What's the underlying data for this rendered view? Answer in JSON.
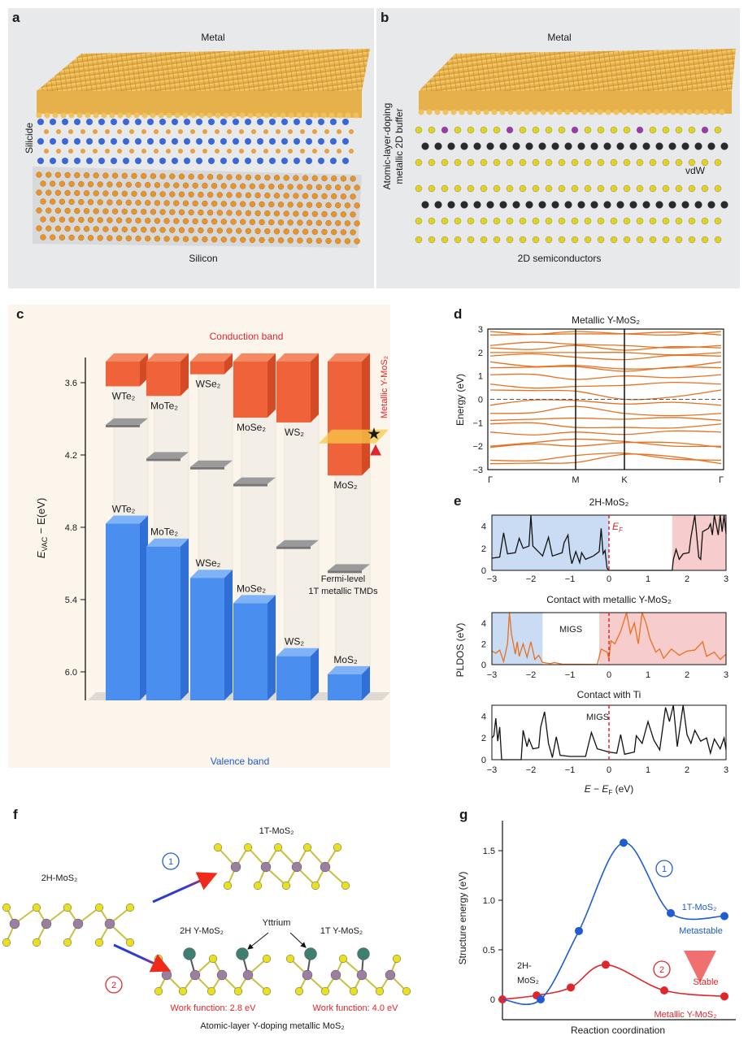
{
  "panel_labels": {
    "a": "a",
    "b": "b",
    "c": "c",
    "d": "d",
    "e": "e",
    "f": "f",
    "g": "g"
  },
  "panel_a": {
    "metal": "Metal",
    "silicide": "Silicide",
    "silicon": "Silicon"
  },
  "panel_b": {
    "metal": "Metal",
    "buffer_line1": "Atomic-layer-doping",
    "buffer_line2": "metallic 2D buffer",
    "vdw": "vdW",
    "semiconductors": "2D semiconductors"
  },
  "panel_f": {
    "start": "2H-MoS₂",
    "path1_marker": "1",
    "path1_product": "1T-MoS₂",
    "path2_marker": "2",
    "product_2h": "2H Y-MoS₂",
    "product_1t": "1T Y-MoS₂",
    "dopant": "Yttrium",
    "wf_2h": "Work function: 2.8 eV",
    "wf_1t": "Work function: 4.0 eV",
    "caption": "Atomic-layer Y-doping metallic MoS₂",
    "colors": {
      "mo": "#9a7fa0",
      "s": "#e8e020",
      "y": "#3f7f72",
      "arrow_start": "#1f3fd1",
      "arrow_end": "#f02a1a"
    }
  },
  "chart_data": [
    {
      "panel": "c",
      "type": "bar",
      "subtype": "floating-3d-band-alignment",
      "ylabel_main": "E",
      "ylabel_sub": "VAC",
      "ylabel_rest": " − E(eV)",
      "ylabel_italic_e": "E",
      "yaxis_inverted": true,
      "ylim": [
        3.4,
        6.24
      ],
      "yticks": [
        "3.6",
        "4.2",
        "4.8",
        "5.4",
        "6.0"
      ],
      "yticks_values": [
        3.6,
        4.2,
        4.8,
        5.4,
        6.0
      ],
      "top_label": "Conduction band",
      "bottom_label": "Valence band",
      "categories": [
        "WTe₂",
        "MoTe₂",
        "WSe₂",
        "MoSe₂",
        "WS₂",
        "MoS₂"
      ],
      "conduction_band_minimum": [
        3.63,
        3.71,
        3.53,
        3.89,
        3.93,
        4.37
      ],
      "valence_band_maximum": [
        4.77,
        4.96,
        5.22,
        5.43,
        5.87,
        6.02
      ],
      "fermi_level_1T": [
        3.95,
        4.23,
        4.3,
        4.44,
        4.96,
        5.16
      ],
      "metallic_y_mos2_level": 4.07,
      "annotation_metallic": "Metallic Y-MoS₂",
      "annotation_fermi_line1": "Fermi-level",
      "annotation_fermi_line2": "1T metallic TMDs",
      "colors": {
        "conduction": "#f0623a",
        "valence": "#4a8ef0",
        "fermi": "#8c8c8c",
        "plane": "#f7c948",
        "star": "#e0262b"
      }
    },
    {
      "panel": "d",
      "type": "line",
      "title": "Metallic Y-MoS₂",
      "ylabel": "Energy (eV)",
      "ylim": [
        -3,
        3
      ],
      "yticks": [
        "3",
        "2",
        "1",
        "0",
        "−1",
        "−2",
        "−3"
      ],
      "yticks_values": [
        3,
        2,
        1,
        0,
        -1,
        -2,
        -3
      ],
      "kpath": [
        "Γ",
        "M",
        "K",
        "Γ"
      ],
      "fermi_level": 0,
      "band_color": "#e8701e",
      "bands_at_kpoints": [
        [
          2.9,
          2.9,
          2.8,
          2.9
        ],
        [
          2.75,
          2.8,
          2.8,
          2.75
        ],
        [
          2.3,
          2.35,
          2.3,
          2.3
        ],
        [
          2.2,
          2.3,
          2.1,
          2.2
        ],
        [
          2.0,
          2.0,
          2.0,
          2.0
        ],
        [
          1.85,
          1.8,
          1.7,
          1.85
        ],
        [
          1.6,
          1.45,
          1.3,
          1.6
        ],
        [
          1.35,
          1.4,
          1.2,
          1.35
        ],
        [
          1.05,
          0.85,
          1.0,
          1.05
        ],
        [
          0.65,
          0.55,
          0.6,
          0.65
        ],
        [
          0.4,
          0.35,
          0.0,
          0.4
        ],
        [
          -0.25,
          -0.05,
          -0.2,
          -0.25
        ],
        [
          -0.6,
          -0.3,
          -0.6,
          -0.6
        ],
        [
          -0.9,
          -0.8,
          -0.85,
          -0.9
        ],
        [
          -1.05,
          -1.2,
          -1.2,
          -1.05
        ],
        [
          -1.4,
          -1.4,
          -1.5,
          -1.4
        ],
        [
          -2.0,
          -1.7,
          -1.8,
          -2.0
        ],
        [
          -2.05,
          -2.0,
          -1.85,
          -2.05
        ],
        [
          -2.6,
          -2.4,
          -2.3,
          -2.6
        ],
        [
          -2.75,
          -2.7,
          -2.35,
          -2.75
        ]
      ]
    },
    {
      "panel": "e",
      "type": "line",
      "ylabel": "PLDOS (eV)",
      "xlabel_main": "E",
      "xlabel_mid": " − ",
      "xlabel_e2": "E",
      "xlabel_sub": "F",
      "xlabel_rest": " (eV)",
      "xlim": [
        -3,
        3
      ],
      "ylim": [
        0,
        5
      ],
      "xticks": [
        "−3",
        "−2",
        "−1",
        "0",
        "1",
        "2",
        "3"
      ],
      "xticks_values": [
        -3,
        -2,
        -1,
        0,
        1,
        2,
        3
      ],
      "yticks": [
        "0",
        "2",
        "4"
      ],
      "yticks_values": [
        0,
        2,
        4
      ],
      "fermi_label_main": "E",
      "fermi_label_sub": "F",
      "subplots": [
        {
          "title": "2H-MoS₂",
          "line_color": "#111111",
          "valence_region": [
            -3,
            0
          ],
          "conduction_region": [
            1.62,
            3
          ],
          "annotation": "",
          "points": [
            [
              -3,
              1.1
            ],
            [
              -2.8,
              1.2
            ],
            [
              -2.7,
              3.4
            ],
            [
              -2.6,
              1.5
            ],
            [
              -2.4,
              1.6
            ],
            [
              -2.3,
              2.9
            ],
            [
              -2.2,
              2.0
            ],
            [
              -2.05,
              2.2
            ],
            [
              -2.0,
              5
            ],
            [
              -1.95,
              2.2
            ],
            [
              -1.7,
              1.3
            ],
            [
              -1.55,
              3.0
            ],
            [
              -1.45,
              1.3
            ],
            [
              -1.2,
              1.6
            ],
            [
              -1.15,
              2.5
            ],
            [
              -1.05,
              3.2
            ],
            [
              -1.0,
              1.5
            ],
            [
              -0.95,
              0.6
            ],
            [
              -0.85,
              1.7
            ],
            [
              -0.75,
              0.7
            ],
            [
              -0.7,
              1.6
            ],
            [
              -0.6,
              1.0
            ],
            [
              -0.4,
              1.3
            ],
            [
              -0.25,
              1.7
            ],
            [
              -0.2,
              3.8
            ],
            [
              -0.15,
              1.5
            ],
            [
              -0.1,
              1.8
            ],
            [
              -0.05,
              0.2
            ],
            [
              0,
              0
            ],
            [
              1.62,
              0
            ],
            [
              1.65,
              1.0
            ],
            [
              1.72,
              1.9
            ],
            [
              1.8,
              1.0
            ],
            [
              1.9,
              1.5
            ],
            [
              2.05,
              1.6
            ],
            [
              2.1,
              3
            ],
            [
              2.2,
              5
            ],
            [
              2.3,
              1.2
            ],
            [
              2.35,
              1.0
            ],
            [
              2.4,
              3.5
            ],
            [
              2.55,
              3.8
            ],
            [
              2.6,
              4.2
            ],
            [
              2.65,
              3.2
            ],
            [
              2.7,
              5
            ],
            [
              2.8,
              3.2
            ],
            [
              2.85,
              5
            ],
            [
              2.9,
              3.5
            ],
            [
              2.95,
              5
            ],
            [
              3,
              3.3
            ]
          ]
        },
        {
          "title": "Contact with metallic Y-MoS₂",
          "line_color": "#e8701e",
          "valence_region": [
            -3,
            -1.7
          ],
          "conduction_region": [
            -0.25,
            3
          ],
          "annotation": "MIGS",
          "points": [
            [
              -3,
              1.3
            ],
            [
              -2.9,
              1.1
            ],
            [
              -2.8,
              1.4
            ],
            [
              -2.7,
              0.3
            ],
            [
              -2.6,
              2
            ],
            [
              -2.55,
              5
            ],
            [
              -2.5,
              3
            ],
            [
              -2.4,
              1
            ],
            [
              -2.35,
              2.2
            ],
            [
              -2.3,
              0.8
            ],
            [
              -2.2,
              2.0
            ],
            [
              -2.1,
              0.7
            ],
            [
              -2.0,
              2.2
            ],
            [
              -1.9,
              0.5
            ],
            [
              -1.8,
              0.9
            ],
            [
              -1.7,
              0.2
            ],
            [
              -1.5,
              0.1
            ],
            [
              -1.4,
              0.2
            ],
            [
              -1.2,
              0.05
            ],
            [
              -0.3,
              0.02
            ],
            [
              -0.2,
              1.5
            ],
            [
              -0.05,
              1.2
            ],
            [
              0,
              0.6
            ],
            [
              0.05,
              2.3
            ],
            [
              0.15,
              2.0
            ],
            [
              0.3,
              3.2
            ],
            [
              0.45,
              5
            ],
            [
              0.55,
              3
            ],
            [
              0.65,
              4
            ],
            [
              0.75,
              2
            ],
            [
              0.85,
              5
            ],
            [
              0.95,
              4
            ],
            [
              1.05,
              2.5
            ],
            [
              1.2,
              1.2
            ],
            [
              1.3,
              1.5
            ],
            [
              1.4,
              0.6
            ],
            [
              1.6,
              1.5
            ],
            [
              1.8,
              0.9
            ],
            [
              2.0,
              1.3
            ],
            [
              2.2,
              1.4
            ],
            [
              2.4,
              2.2
            ],
            [
              2.5,
              0.8
            ],
            [
              2.7,
              1.2
            ],
            [
              2.85,
              0.5
            ],
            [
              3,
              1.0
            ]
          ]
        },
        {
          "title": "Contact with Ti",
          "line_color": "#111111",
          "valence_region": null,
          "conduction_region": null,
          "annotation": "MIGS",
          "points": [
            [
              -3,
              2.0
            ],
            [
              -2.95,
              2.2
            ],
            [
              -2.9,
              3.8
            ],
            [
              -2.85,
              1.7
            ],
            [
              -2.8,
              3.0
            ],
            [
              -2.75,
              0
            ],
            [
              -2.25,
              0
            ],
            [
              -2.2,
              2.7
            ],
            [
              -2.1,
              1.2
            ],
            [
              -2.05,
              1.9
            ],
            [
              -1.95,
              1.0
            ],
            [
              -1.8,
              1.1
            ],
            [
              -1.75,
              3
            ],
            [
              -1.65,
              4.4
            ],
            [
              -1.55,
              1.5
            ],
            [
              -1.45,
              0.2
            ],
            [
              -1.35,
              2.1
            ],
            [
              -1.25,
              0.4
            ],
            [
              -1.0,
              0.3
            ],
            [
              -0.6,
              0.3
            ],
            [
              -0.45,
              2.5
            ],
            [
              -0.3,
              1.0
            ],
            [
              -0.1,
              0.8
            ],
            [
              0,
              0.7
            ],
            [
              0.2,
              0.6
            ],
            [
              0.3,
              2.3
            ],
            [
              0.4,
              0.5
            ],
            [
              0.65,
              0.7
            ],
            [
              0.7,
              2.2
            ],
            [
              0.85,
              1.5
            ],
            [
              1.0,
              3.5
            ],
            [
              1.15,
              1.8
            ],
            [
              1.3,
              0.9
            ],
            [
              1.45,
              4.8
            ],
            [
              1.55,
              3.5
            ],
            [
              1.65,
              5
            ],
            [
              1.75,
              1.2
            ],
            [
              1.9,
              5
            ],
            [
              2.0,
              2.3
            ],
            [
              2.1,
              1.5
            ],
            [
              2.2,
              2.7
            ],
            [
              2.35,
              1.7
            ],
            [
              2.5,
              2.0
            ],
            [
              2.6,
              0.6
            ],
            [
              2.7,
              1.9
            ],
            [
              2.85,
              1.0
            ],
            [
              2.95,
              2.0
            ],
            [
              3,
              0.9
            ]
          ]
        }
      ],
      "colors": {
        "valence_region": "#c9dcf3",
        "conduction_region": "#f6cccc",
        "fermi_line": "#e0262b"
      }
    },
    {
      "panel": "g",
      "type": "line",
      "ylabel": "Structure energy (eV)",
      "xlabel": "Reaction coordination",
      "ylim": [
        -0.2,
        1.78
      ],
      "yticks": [
        "0",
        "0.5",
        "1.0",
        "1.5"
      ],
      "yticks_values": [
        0,
        0.5,
        1.0,
        1.5
      ],
      "series": [
        {
          "marker": "1",
          "color": "#1f5bd1",
          "values": [
            0.0,
            0.0,
            0.69,
            1.58,
            0.87,
            0.84
          ]
        },
        {
          "marker": "2",
          "color": "#e0262b",
          "values": [
            0.0,
            0.04,
            0.12,
            0.35,
            0.09,
            0.03
          ]
        }
      ],
      "annotations": {
        "start_line1": "2H-",
        "start_line2": "MoS₂",
        "end_1t": "1T-MoS₂",
        "metastable": "Metastable",
        "stable": "Stable",
        "end_y": "Metallic Y-MoS₂"
      }
    }
  ]
}
